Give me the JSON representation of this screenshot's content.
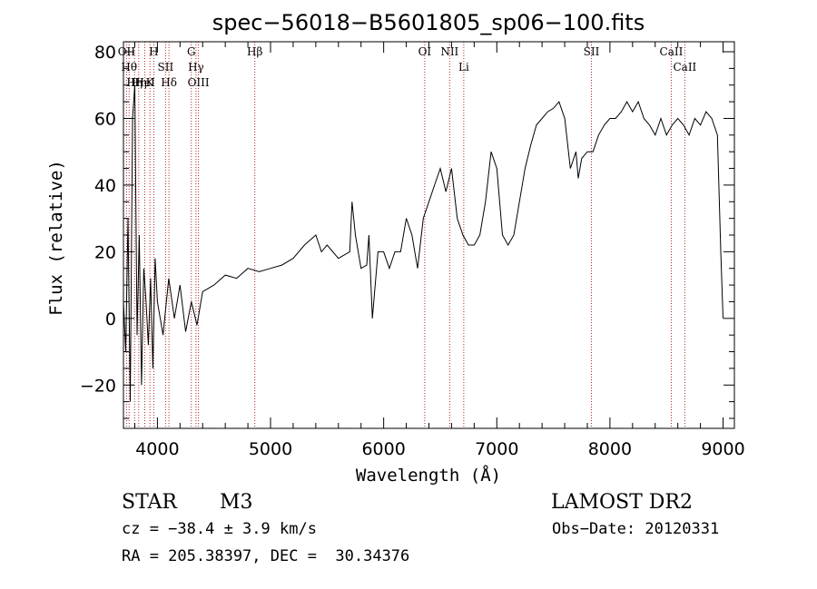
{
  "chart_data": {
    "type": "line",
    "title": "spec−56018−B5601805_sp06−100.fits",
    "xlabel": "Wavelength (Å)",
    "ylabel": "Flux (relative)",
    "xlim": [
      3700,
      9100
    ],
    "ylim": [
      -33,
      83
    ],
    "x_ticks": [
      4000,
      5000,
      6000,
      7000,
      8000,
      9000
    ],
    "y_ticks": [
      -20,
      0,
      20,
      40,
      60,
      80
    ],
    "y_tick_labels": [
      "−20",
      "0",
      "20",
      "40",
      "60",
      "80"
    ],
    "grid": false,
    "series": [
      {
        "x": [
          3700,
          3720,
          3740,
          3760,
          3780,
          3800,
          3820,
          3840,
          3860,
          3880,
          3900,
          3920,
          3940,
          3960,
          3980,
          4000,
          4050,
          4100,
          4150,
          4200,
          4250,
          4300,
          4350,
          4400,
          4500,
          4600,
          4700,
          4800,
          4900,
          5000,
          5100,
          5200,
          5300,
          5400,
          5450,
          5500,
          5600,
          5700,
          5720,
          5750,
          5800,
          5850,
          5870,
          5900,
          5950,
          6000,
          6050,
          6100,
          6150,
          6200,
          6250,
          6300,
          6350,
          6400,
          6450,
          6500,
          6550,
          6600,
          6650,
          6700,
          6750,
          6800,
          6850,
          6900,
          6950,
          7000,
          7050,
          7100,
          7150,
          7200,
          7250,
          7300,
          7350,
          7400,
          7450,
          7500,
          7550,
          7600,
          7650,
          7700,
          7720,
          7750,
          7800,
          7850,
          7900,
          7950,
          8000,
          8050,
          8100,
          8150,
          8200,
          8250,
          8300,
          8350,
          8400,
          8450,
          8500,
          8550,
          8600,
          8650,
          8700,
          8750,
          8800,
          8850,
          8900,
          8950,
          8980,
          9000
        ],
        "y": [
          5,
          -10,
          30,
          -25,
          60,
          70,
          -5,
          25,
          -20,
          15,
          5,
          -8,
          12,
          -15,
          18,
          5,
          -5,
          12,
          0,
          10,
          -4,
          5,
          -2,
          8,
          10,
          13,
          12,
          15,
          14,
          15,
          16,
          18,
          22,
          25,
          20,
          22,
          18,
          20,
          35,
          25,
          15,
          16,
          25,
          0,
          20,
          20,
          15,
          20,
          20,
          30,
          25,
          15,
          30,
          35,
          40,
          45,
          38,
          45,
          30,
          25,
          22,
          22,
          25,
          35,
          50,
          45,
          25,
          22,
          25,
          35,
          45,
          52,
          58,
          60,
          62,
          63,
          65,
          60,
          45,
          50,
          42,
          48,
          50,
          50,
          55,
          58,
          60,
          60,
          62,
          65,
          62,
          65,
          60,
          58,
          55,
          60,
          55,
          58,
          60,
          58,
          55,
          60,
          58,
          62,
          60,
          55,
          20,
          0
        ]
      }
    ],
    "lines": [
      {
        "wavelength": 3727,
        "labels": [
          "OII"
        ]
      },
      {
        "wavelength": 3750,
        "labels": [
          "Hθ"
        ]
      },
      {
        "wavelength": 3798,
        "labels": [
          "Hη"
        ]
      },
      {
        "wavelength": 3835,
        "labels": [
          "Hη"
        ]
      },
      {
        "wavelength": 3889,
        "labels": [
          "HeI"
        ]
      },
      {
        "wavelength": 3934,
        "labels": [
          "K"
        ]
      },
      {
        "wavelength": 3968,
        "labels": [
          "H"
        ]
      },
      {
        "wavelength": 4072,
        "labels": [
          "SII"
        ]
      },
      {
        "wavelength": 4102,
        "labels": [
          "Hδ"
        ]
      },
      {
        "wavelength": 4300,
        "labels": [
          "G"
        ]
      },
      {
        "wavelength": 4341,
        "labels": [
          "Hγ"
        ]
      },
      {
        "wavelength": 4363,
        "labels": [
          "OIII"
        ]
      },
      {
        "wavelength": 4861,
        "labels": [
          "Hβ"
        ]
      },
      {
        "wavelength": 6363,
        "labels": [
          "OI"
        ]
      },
      {
        "wavelength": 6583,
        "labels": [
          "NII"
        ]
      },
      {
        "wavelength": 6708,
        "labels": [
          "Li"
        ]
      },
      {
        "wavelength": 7836,
        "labels": [
          "SII"
        ]
      },
      {
        "wavelength": 8542,
        "labels": [
          "CaII"
        ]
      },
      {
        "wavelength": 8662,
        "labels": [
          "CaII"
        ]
      }
    ],
    "line_color": "#b22222"
  },
  "info": {
    "object_class": "STAR",
    "subclass": "M3",
    "survey": "LAMOST DR2",
    "cz": "cz = −38.4 ± 3.9 km/s",
    "obs_date": "Obs−Date: 20120331",
    "coords": "RA = 205.38397, DEC =  30.34376"
  }
}
